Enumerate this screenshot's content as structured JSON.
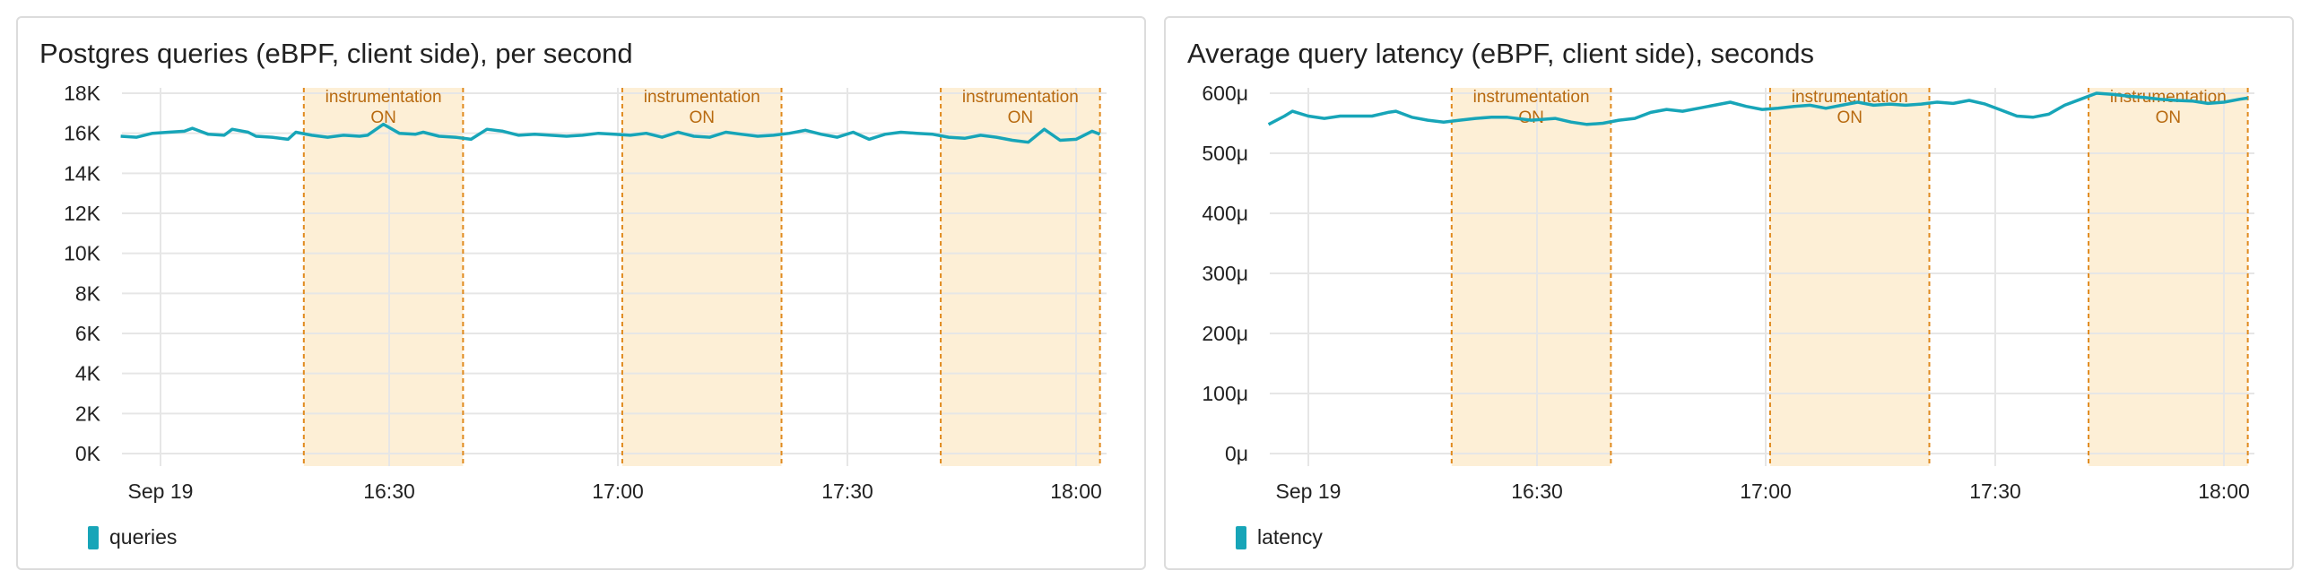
{
  "colors": {
    "series": "#17a5b8",
    "band_fill": "#fdefd6",
    "band_line": "#e08a1e",
    "band_text": "#b86a10",
    "grid": "#e6e6e6",
    "axis_text": "#222222"
  },
  "chart_data": [
    {
      "type": "line",
      "title": "Postgres queries (eBPF, client side), per second",
      "xlabel": "",
      "ylabel": "",
      "x_range": [
        "16:05",
        "18:05"
      ],
      "x_ticks": [
        "Sep 19",
        "16:30",
        "17:00",
        "17:30",
        "18:00"
      ],
      "ylim": [
        0,
        18000
      ],
      "y_ticks": [
        "0K",
        "2K",
        "4K",
        "6K",
        "8K",
        "10K",
        "12K",
        "14K",
        "16K",
        "18K"
      ],
      "grid": true,
      "legend_position": "bottom-left",
      "annotations": [
        {
          "start": "16:23",
          "end": "16:43",
          "label": "instrumentation\nON"
        },
        {
          "start": "17:03",
          "end": "17:23",
          "label": "instrumentation\nON"
        },
        {
          "start": "17:43",
          "end": "18:03",
          "label": "instrumentation\nON"
        }
      ],
      "series": [
        {
          "name": "queries",
          "points": [
            [
              "16:00",
              15850
            ],
            [
              "16:02",
              15800
            ],
            [
              "16:04",
              16000
            ],
            [
              "16:06",
              16050
            ],
            [
              "16:08",
              16100
            ],
            [
              "16:09",
              16250
            ],
            [
              "16:11",
              15950
            ],
            [
              "16:13",
              15900
            ],
            [
              "16:14",
              16200
            ],
            [
              "16:16",
              16050
            ],
            [
              "16:17",
              15850
            ],
            [
              "16:19",
              15800
            ],
            [
              "16:21",
              15700
            ],
            [
              "16:22",
              16050
            ],
            [
              "16:24",
              15900
            ],
            [
              "16:26",
              15800
            ],
            [
              "16:28",
              15900
            ],
            [
              "16:30",
              15850
            ],
            [
              "16:31",
              15900
            ],
            [
              "16:33",
              16450
            ],
            [
              "16:35",
              16000
            ],
            [
              "16:37",
              15950
            ],
            [
              "16:38",
              16050
            ],
            [
              "16:40",
              15850
            ],
            [
              "16:42",
              15800
            ],
            [
              "16:44",
              15700
            ],
            [
              "16:46",
              16200
            ],
            [
              "16:48",
              16100
            ],
            [
              "16:50",
              15900
            ],
            [
              "16:52",
              15950
            ],
            [
              "16:54",
              15900
            ],
            [
              "16:56",
              15850
            ],
            [
              "16:58",
              15900
            ],
            [
              "17:00",
              16000
            ],
            [
              "17:02",
              15950
            ],
            [
              "17:04",
              15900
            ],
            [
              "17:06",
              16000
            ],
            [
              "17:08",
              15800
            ],
            [
              "17:10",
              16050
            ],
            [
              "17:12",
              15850
            ],
            [
              "17:14",
              15800
            ],
            [
              "17:16",
              16050
            ],
            [
              "17:18",
              15950
            ],
            [
              "17:20",
              15850
            ],
            [
              "17:22",
              15900
            ],
            [
              "17:24",
              16000
            ],
            [
              "17:26",
              16150
            ],
            [
              "17:28",
              15950
            ],
            [
              "17:30",
              15800
            ],
            [
              "17:32",
              16050
            ],
            [
              "17:34",
              15700
            ],
            [
              "17:36",
              15950
            ],
            [
              "17:38",
              16050
            ],
            [
              "17:40",
              16000
            ],
            [
              "17:42",
              15950
            ],
            [
              "17:44",
              15800
            ],
            [
              "17:46",
              15750
            ],
            [
              "17:48",
              15900
            ],
            [
              "17:50",
              15800
            ],
            [
              "17:52",
              15650
            ],
            [
              "17:54",
              15550
            ],
            [
              "17:56",
              16200
            ],
            [
              "17:58",
              15650
            ],
            [
              "18:00",
              15700
            ],
            [
              "18:02",
              16100
            ],
            [
              "18:03",
              15950
            ]
          ]
        }
      ]
    },
    {
      "type": "line",
      "title": "Average query latency (eBPF, client side), seconds",
      "xlabel": "",
      "ylabel": "",
      "x_range": [
        "16:05",
        "18:05"
      ],
      "x_ticks": [
        "Sep 19",
        "16:30",
        "17:00",
        "17:30",
        "18:00"
      ],
      "ylim": [
        0,
        0.00065
      ],
      "y_ticks": [
        "0μ",
        "100μ",
        "200μ",
        "300μ",
        "400μ",
        "500μ",
        "600μ"
      ],
      "grid": true,
      "legend_position": "bottom-left",
      "annotations": [
        {
          "start": "16:23",
          "end": "16:43",
          "label": "instrumentation\nON"
        },
        {
          "start": "17:03",
          "end": "17:23",
          "label": "instrumentation\nON"
        },
        {
          "start": "17:43",
          "end": "18:03",
          "label": "instrumentation\nON"
        }
      ],
      "series": [
        {
          "name": "latency",
          "points": [
            [
              "16:00",
              0.000548
            ],
            [
              "16:02",
              0.000562
            ],
            [
              "16:03",
              0.00057
            ],
            [
              "16:05",
              0.000562
            ],
            [
              "16:07",
              0.000558
            ],
            [
              "16:09",
              0.000562
            ],
            [
              "16:11",
              0.000562
            ],
            [
              "16:13",
              0.000562
            ],
            [
              "16:15",
              0.000568
            ],
            [
              "16:16",
              0.00057
            ],
            [
              "16:18",
              0.00056
            ],
            [
              "16:20",
              0.000555
            ],
            [
              "16:22",
              0.000552
            ],
            [
              "16:24",
              0.000555
            ],
            [
              "16:26",
              0.000558
            ],
            [
              "16:28",
              0.00056
            ],
            [
              "16:30",
              0.00056
            ],
            [
              "16:33",
              0.000555
            ],
            [
              "16:36",
              0.000558
            ],
            [
              "16:38",
              0.000552
            ],
            [
              "16:40",
              0.000548
            ],
            [
              "16:42",
              0.00055
            ],
            [
              "16:44",
              0.000555
            ],
            [
              "16:46",
              0.000558
            ],
            [
              "16:48",
              0.000568
            ],
            [
              "16:50",
              0.000573
            ],
            [
              "16:52",
              0.00057
            ],
            [
              "16:54",
              0.000575
            ],
            [
              "16:56",
              0.00058
            ],
            [
              "16:58",
              0.000585
            ],
            [
              "17:00",
              0.000578
            ],
            [
              "17:02",
              0.000573
            ],
            [
              "17:04",
              0.000575
            ],
            [
              "17:06",
              0.000578
            ],
            [
              "17:08",
              0.00058
            ],
            [
              "17:10",
              0.000575
            ],
            [
              "17:12",
              0.00058
            ],
            [
              "17:14",
              0.000585
            ],
            [
              "17:16",
              0.00058
            ],
            [
              "17:18",
              0.000582
            ],
            [
              "17:20",
              0.00058
            ],
            [
              "17:22",
              0.000582
            ],
            [
              "17:24",
              0.000585
            ],
            [
              "17:26",
              0.000583
            ],
            [
              "17:28",
              0.000588
            ],
            [
              "17:30",
              0.000582
            ],
            [
              "17:32",
              0.000572
            ],
            [
              "17:34",
              0.000562
            ],
            [
              "17:36",
              0.00056
            ],
            [
              "17:38",
              0.000565
            ],
            [
              "17:40",
              0.00058
            ],
            [
              "17:42",
              0.00059
            ],
            [
              "17:44",
              0.0006
            ],
            [
              "17:46",
              0.000598
            ],
            [
              "17:48",
              0.000595
            ],
            [
              "17:50",
              0.000593
            ],
            [
              "17:52",
              0.00059
            ],
            [
              "17:54",
              0.000588
            ],
            [
              "17:56",
              0.000587
            ],
            [
              "17:58",
              0.000583
            ],
            [
              "18:00",
              0.000585
            ],
            [
              "18:02",
              0.00059
            ],
            [
              "18:03",
              0.000592
            ]
          ]
        }
      ]
    }
  ]
}
